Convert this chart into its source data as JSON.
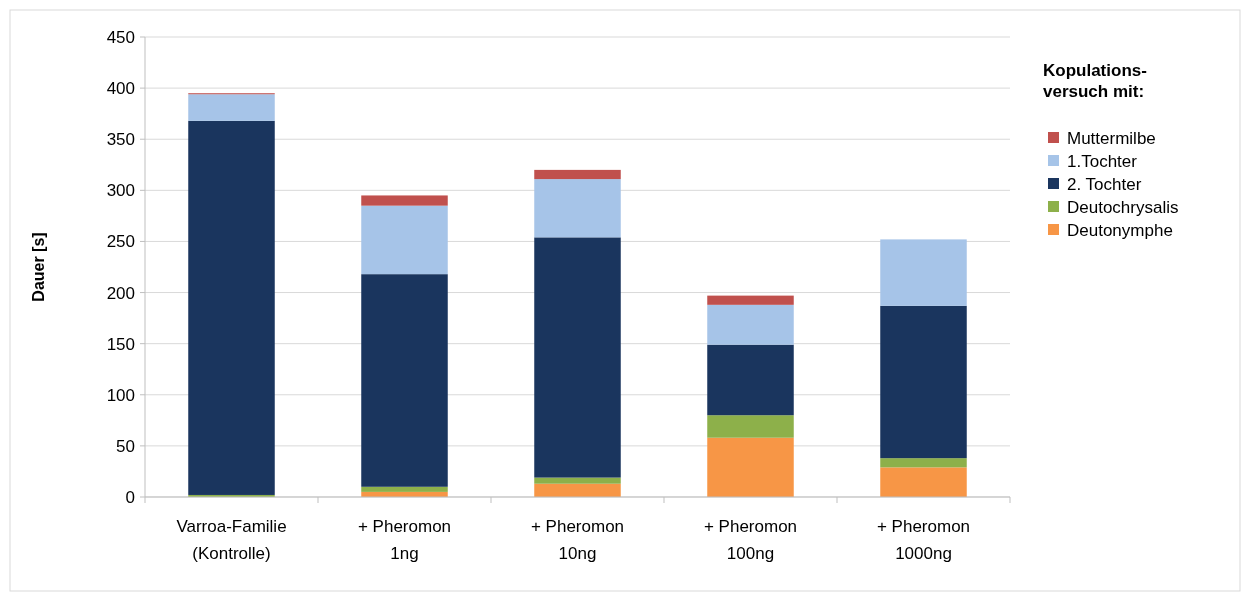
{
  "chart_data": {
    "type": "bar",
    "stacked": true,
    "ylabel": "Dauer [s]",
    "legend_title": "Kopulations-\nversuch mit:",
    "legend": "right",
    "categories": [
      "Varroa-Familie\n(Kontrolle)",
      "+ Pheromon\n1ng",
      "+ Pheromon\n10ng",
      "+ Pheromon\n100ng",
      "+ Pheromon\n1000ng"
    ],
    "series": [
      {
        "name": "Deutonymphe",
        "color": "#f79646",
        "values": [
          0,
          5,
          13,
          58,
          29
        ]
      },
      {
        "name": "Deutochrysalis",
        "color": "#8db04a",
        "values": [
          2,
          5,
          6,
          22,
          9
        ]
      },
      {
        "name": "2. Tochter",
        "color": "#1a355e",
        "values": [
          366,
          208,
          235,
          69,
          149
        ]
      },
      {
        "name": "1.Tochter",
        "color": "#a6c4e8",
        "values": [
          26,
          67,
          57,
          39,
          65
        ]
      },
      {
        "name": "Muttermilbe",
        "color": "#c0504d",
        "values": [
          1,
          10,
          9,
          9,
          0
        ]
      }
    ],
    "ylim": [
      0,
      450
    ],
    "yticks": [
      0,
      50,
      100,
      150,
      200,
      250,
      300,
      350,
      400,
      450
    ],
    "grid": "y"
  }
}
